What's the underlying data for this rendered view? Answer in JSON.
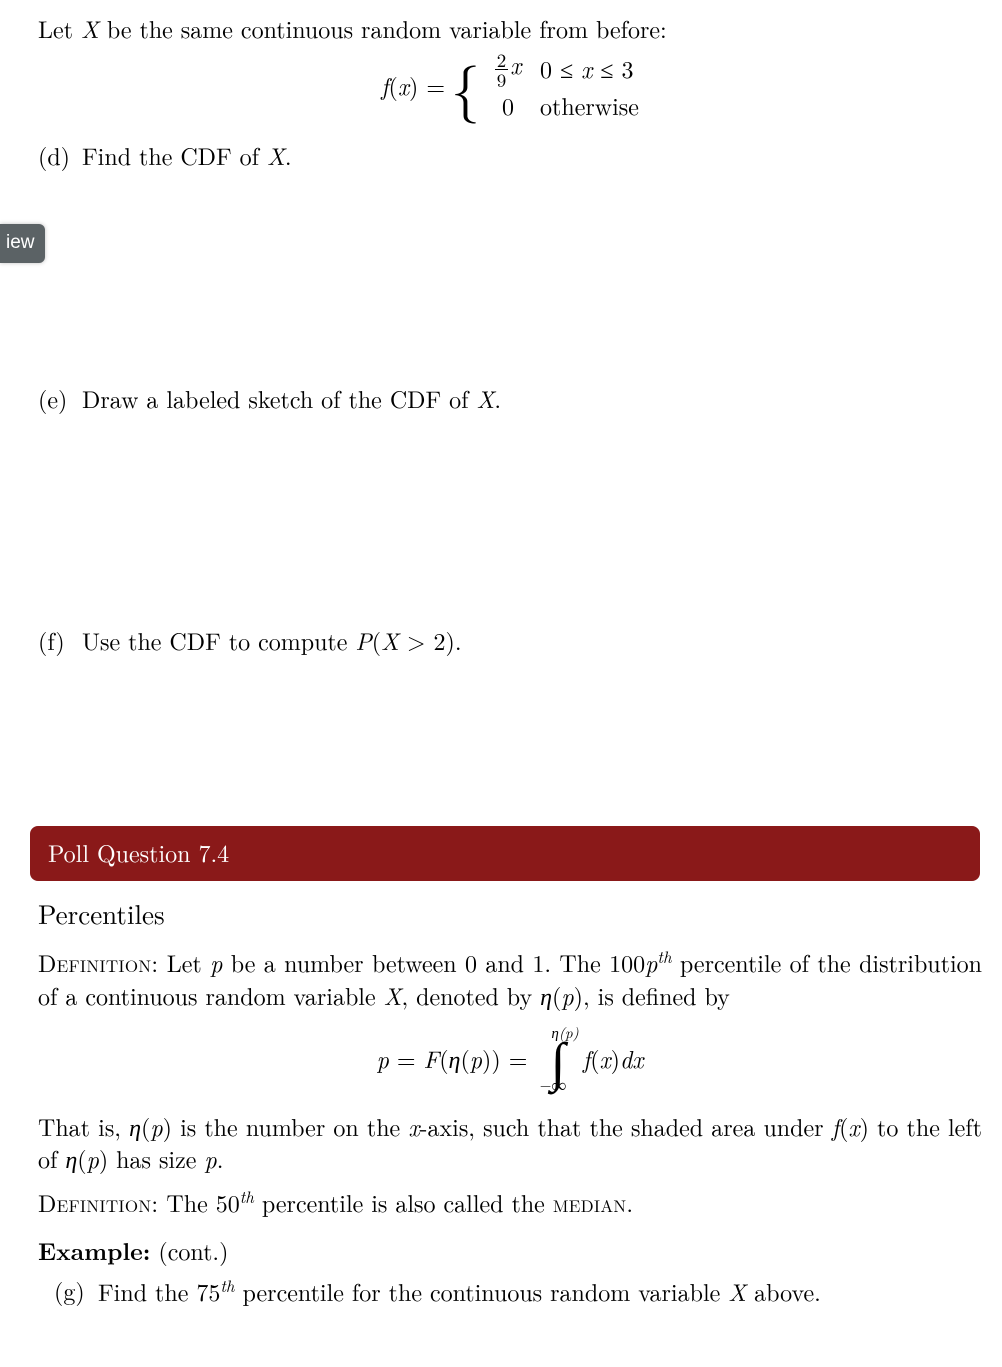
{
  "intro": {
    "pre": "Let ",
    "var": "X",
    "post": " be the same continuous random variable from before:"
  },
  "piecewise": {
    "lhs_f": "f",
    "lhs_x": "x",
    "eq": " = ",
    "row1_num": "2",
    "row1_den": "9",
    "row1_var": "x",
    "row1_cond": "0 ≤ x ≤ 3",
    "row2_val": "0",
    "row2_cond": "otherwise"
  },
  "q_d": {
    "mark": "(d)",
    "pre": "Find the CDF of ",
    "var": "X",
    "post": "."
  },
  "q_e": {
    "mark": "(e)",
    "pre": "Draw a labeled sketch of the CDF of ",
    "var": "X",
    "post": "."
  },
  "q_f": {
    "mark": "(f)",
    "pre": "Use the CDF to compute ",
    "expr": "P(X > 2)",
    "post": "."
  },
  "side_tab": "iew",
  "poll_label": "Poll Question 7.4",
  "subhead": "Percentiles",
  "def1": {
    "label": "Definition:",
    "t1": "  Let ",
    "p": "p",
    "t2": " be a number between 0 and 1.  The 100",
    "t2b": "p",
    "t2c": "th",
    "t3": " percentile of the distribution of a continuous random variable ",
    "X": "X",
    "t4": ", denoted by ",
    "eta1": "η",
    "t5": "(",
    "p2": "p",
    "t6": "), is defined by"
  },
  "eq": {
    "lhs_p": "p",
    "eq1": " = ",
    "F": "F",
    "lp": "(",
    "eta": "η",
    "lp2": "(",
    "p2": "p",
    "rp2": "))",
    "eq2": " = ",
    "int_top_eta": "η",
    "int_top_lp": "(",
    "int_top_p": "p",
    "int_top_rp": ")",
    "int_bot": "−∞",
    "f": "f",
    "lx": "(",
    "x": "x",
    "rx": ")",
    "dx_d": "d",
    "dx_x": "x"
  },
  "that_is": {
    "t1": "That is, ",
    "eta": "η",
    "t1b": "(",
    "p": "p",
    "t1c": ") is the number on the ",
    "x": "x",
    "t2": "-axis, such that the shaded area under ",
    "f": "f",
    "t2b": "(",
    "x2": "x",
    "t2c": ") to the left of ",
    "eta2": "η",
    "t3b": "(",
    "p2": "p",
    "t3c": ") has size ",
    "p3": "p",
    "t4": "."
  },
  "def2": {
    "label": "Definition:",
    "t1": " The 50",
    "th": "th",
    "t2": " percentile is also called the ",
    "median": "median",
    "t3": "."
  },
  "example": {
    "label": "Example:",
    "cont": " (cont.)"
  },
  "q_g": {
    "mark": "(g)",
    "t1": "Find the 75",
    "th": "th",
    "t2": " percentile for the continuous random variable ",
    "X": "X",
    "t3": " above."
  },
  "colors": {
    "poll_bg": "#8a1919",
    "tab_bg": "#5b6265",
    "text": "#000000",
    "bg": "#ffffff"
  }
}
